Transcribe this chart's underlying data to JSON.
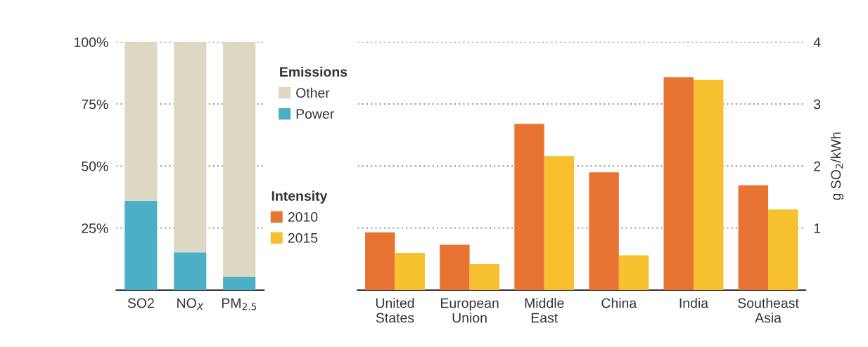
{
  "chart_data": [
    {
      "type": "bar",
      "stacked": true,
      "categories": [
        "SO2",
        "NO$_{X}$",
        "PM$_{2.5}$"
      ],
      "ylim": [
        0,
        100
      ],
      "yticks": [
        {
          "value": 25,
          "label": "25%"
        },
        {
          "value": 50,
          "label": "50%"
        },
        {
          "value": 75,
          "label": "75%"
        },
        {
          "value": 100,
          "label": "100%"
        }
      ],
      "grid": "y",
      "legend": "right",
      "legend_title": "Emissions",
      "series": [
        {
          "name": "Power",
          "color": "#4aafc7",
          "values": [
            36.0,
            15.2,
            5.4
          ]
        },
        {
          "name": "Other",
          "color": "#dcd8c3",
          "values": [
            64.0,
            84.8,
            94.6
          ]
        }
      ]
    },
    {
      "type": "bar",
      "categories": [
        "United\nStates",
        "European\nUnion",
        "Middle\nEast",
        "China",
        "India",
        "Southeast\nAsia"
      ],
      "ylim": [
        0,
        4
      ],
      "yticks": [
        1,
        2,
        3,
        4
      ],
      "ylabel": "g SO$_{2}$/kWh",
      "grid": "y",
      "legend": "left",
      "legend_title": "Intensity",
      "series": [
        {
          "name": "2010",
          "color": "#e87433",
          "values": [
            0.93,
            0.73,
            2.68,
            1.9,
            3.43,
            1.69
          ]
        },
        {
          "name": "2015",
          "color": "#f6c02e",
          "values": [
            0.6,
            0.42,
            2.16,
            0.56,
            3.39,
            1.3
          ]
        }
      ]
    }
  ]
}
